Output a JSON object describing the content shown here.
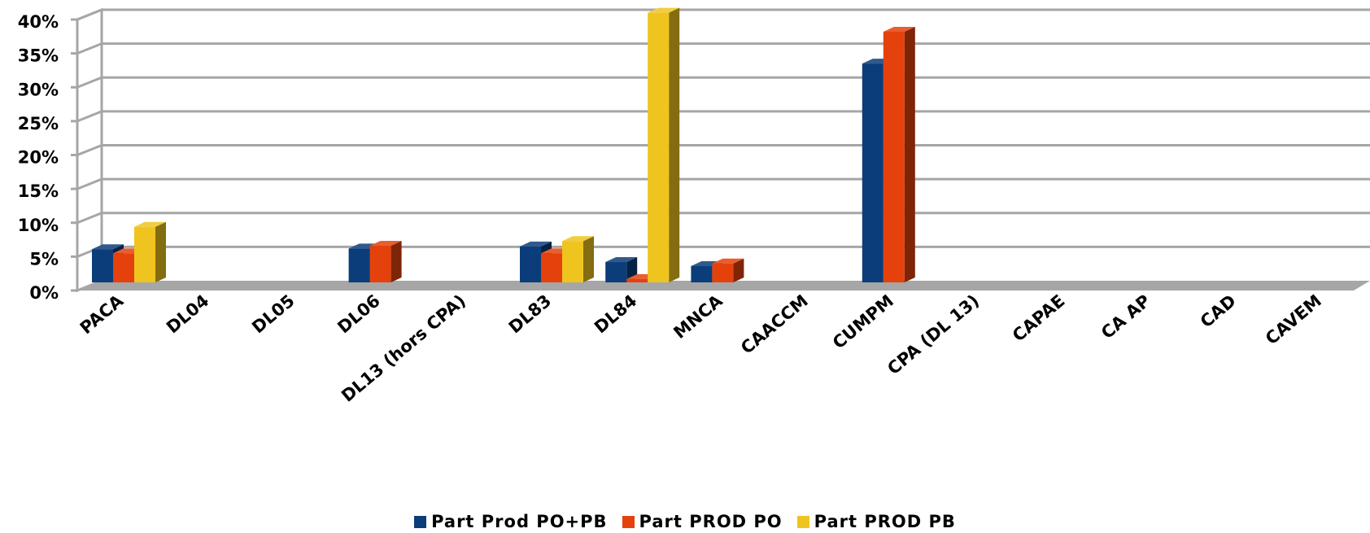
{
  "chart_data": {
    "type": "bar",
    "style": "3d-clustered-column",
    "categories": [
      "PACA",
      "DL04",
      "DL05",
      "DL06",
      "DL13 (hors CPA)",
      "DL83",
      "DL84",
      "MNCA",
      "CAACCM",
      "CUMPM",
      "CPA (DL 13)",
      "CAPAE",
      "CA AP",
      "CAD",
      "CAVEM"
    ],
    "series": [
      {
        "name": "Part Prod PO+PB",
        "color": "#0b3d7a",
        "values": [
          4.9,
          0,
          0,
          5.0,
          0,
          5.3,
          3.0,
          2.4,
          0,
          32.3,
          0,
          0,
          0,
          0,
          0
        ]
      },
      {
        "name": "Part PROD PO",
        "color": "#e5410c",
        "values": [
          4.3,
          0,
          0,
          5.4,
          0,
          4.3,
          0.5,
          2.8,
          0,
          37.0,
          0,
          0,
          0,
          0,
          0
        ]
      },
      {
        "name": "Part PROD PB",
        "color": "#f0c41e",
        "values": [
          8.2,
          0,
          0,
          0,
          0,
          6.1,
          39.8,
          0,
          0,
          0,
          0,
          0,
          0,
          0,
          0
        ]
      }
    ],
    "ylim": [
      0,
      40
    ],
    "yticks": [
      "0%",
      "5%",
      "10%",
      "15%",
      "20%",
      "25%",
      "30%",
      "35%",
      "40%"
    ],
    "grid": true,
    "legend": "bottom"
  }
}
